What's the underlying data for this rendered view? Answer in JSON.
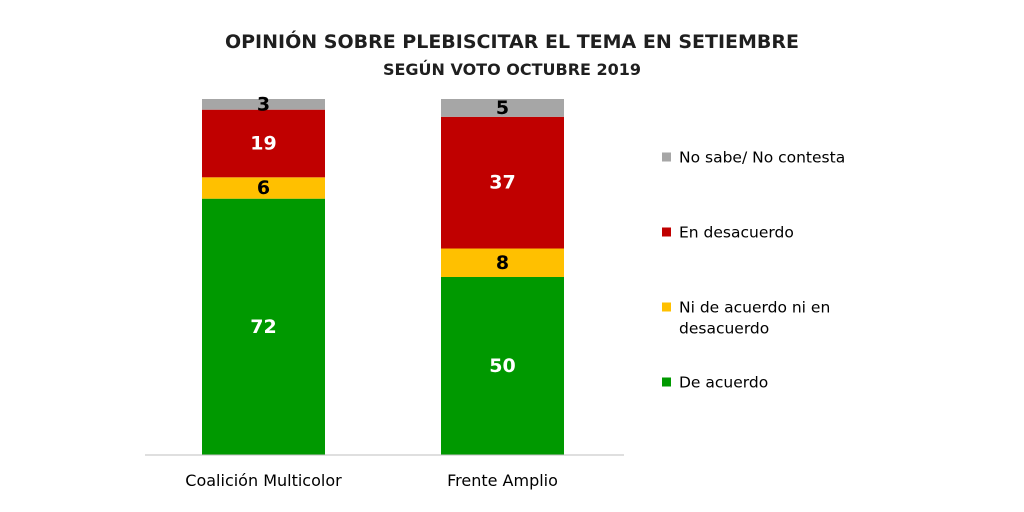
{
  "chart_data": {
    "type": "bar",
    "stacked": true,
    "title": "OPINIÓN SOBRE PLEBISCITAR EL TEMA EN SETIEMBRE",
    "subtitle": "SEGÚN VOTO OCTUBRE 2019",
    "categories": [
      "Coalición Multicolor",
      "Frente Amplio"
    ],
    "series": [
      {
        "name": "De acuerdo",
        "values": [
          72,
          50
        ],
        "color": "#009900",
        "label_color": "#ffffff"
      },
      {
        "name": "Ni de acuerdo ni en desacuerdo",
        "legend_lines": [
          "Ni de acuerdo ni en",
          "desacuerdo"
        ],
        "values": [
          6,
          8
        ],
        "color": "#ffc000",
        "label_color": "#000000"
      },
      {
        "name": "En desacuerdo",
        "values": [
          19,
          37
        ],
        "color": "#c00000",
        "label_color": "#ffffff"
      },
      {
        "name": "No sabe/ No contesta",
        "values": [
          3,
          5
        ],
        "color": "#a6a6a6",
        "label_color": "#000000"
      }
    ],
    "ylim": [
      0,
      100
    ],
    "legend_position": "right",
    "legend_order": [
      "No sabe/ No contesta",
      "En desacuerdo",
      "Ni de acuerdo ni en desacuerdo",
      "De acuerdo"
    ],
    "grid": false,
    "xlabel": "",
    "ylabel": ""
  }
}
